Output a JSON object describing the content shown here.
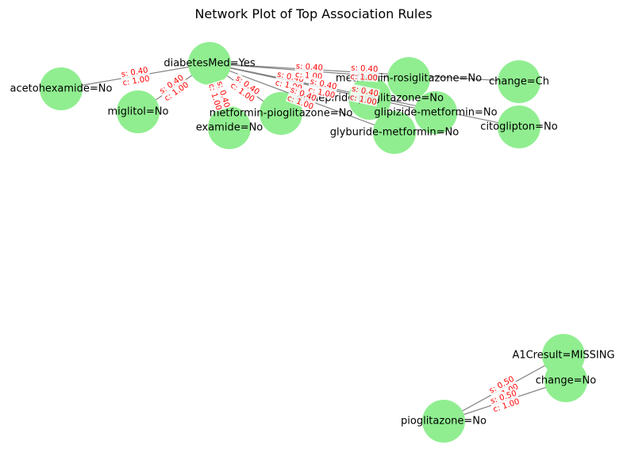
{
  "title": "Network Plot of Top Association Rules",
  "colors": {
    "node": "#90ee90",
    "edge": "#808080",
    "edge_label": "#ff0000",
    "label_bg": "#ffffff"
  },
  "nodes": [
    {
      "id": "diabetesMed",
      "label": "diabetesMed=Yes"
    },
    {
      "id": "acetohexamide",
      "label": "acetohexamide=No"
    },
    {
      "id": "miglitol",
      "label": "miglitol=No"
    },
    {
      "id": "examide",
      "label": "examide=No"
    },
    {
      "id": "metformin-pioglitazone",
      "label": "metformin-pioglitazone=No"
    },
    {
      "id": "glimepiride-pioglitazone",
      "label": "glimepiride-pioglitazone=No"
    },
    {
      "id": "metformin-rosiglitazone",
      "label": "metformin-rosiglitazone=No"
    },
    {
      "id": "glipizide-metformin",
      "label": "glipizide-metformin=No"
    },
    {
      "id": "glyburide-metformin",
      "label": "glyburide-metformin=No"
    },
    {
      "id": "change-Ch",
      "label": "change=Ch"
    },
    {
      "id": "citoglipton",
      "label": "citoglipton=No"
    },
    {
      "id": "A1Cresult",
      "label": "A1Cresult=MISSING"
    },
    {
      "id": "change-No",
      "label": "change=No"
    },
    {
      "id": "pioglitazone",
      "label": "pioglitazone=No"
    }
  ],
  "edges": [
    {
      "from": "diabetesMed",
      "to": "acetohexamide",
      "support": "s: 0.40",
      "confidence": "c: 1.00"
    },
    {
      "from": "diabetesMed",
      "to": "miglitol",
      "support": "s: 0.40",
      "confidence": "c: 1.00"
    },
    {
      "from": "diabetesMed",
      "to": "examide",
      "support": "s: 0.40",
      "confidence": "c: 1.00"
    },
    {
      "from": "diabetesMed",
      "to": "metformin-pioglitazone",
      "support": "s: 0.40",
      "confidence": "c: 1.00"
    },
    {
      "from": "diabetesMed",
      "to": "glimepiride-pioglitazone",
      "support": "s: 0.40",
      "confidence": "c: 1.00"
    },
    {
      "from": "diabetesMed",
      "to": "metformin-rosiglitazone",
      "support": "s: 0.40",
      "confidence": "c: 1.00"
    },
    {
      "from": "diabetesMed",
      "to": "glipizide-metformin",
      "support": "s: 0.40",
      "confidence": "c: 1.00"
    },
    {
      "from": "diabetesMed",
      "to": "glyburide-metformin",
      "support": "s: 0.40",
      "confidence": "c: 1.00"
    },
    {
      "from": "diabetesMed",
      "to": "change-Ch",
      "support": "s: 0.40",
      "confidence": "c: 1.00"
    },
    {
      "from": "diabetesMed",
      "to": "citoglipton",
      "support": "s: 0.40",
      "confidence": "c: 1.00"
    },
    {
      "from": "pioglitazone",
      "to": "A1Cresult",
      "support": "s: 0.50",
      "confidence": "c: 1.00"
    },
    {
      "from": "pioglitazone",
      "to": "change-No",
      "support": "s: 0.50",
      "confidence": "c: 1.00"
    }
  ]
}
